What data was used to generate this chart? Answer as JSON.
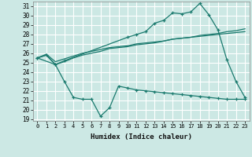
{
  "title": "",
  "xlabel": "Humidex (Indice chaleur)",
  "bg_color": "#cce8e4",
  "line_color": "#1a7a6e",
  "grid_color": "#ffffff",
  "xlim": [
    -0.5,
    23.5
  ],
  "ylim": [
    18.8,
    31.5
  ],
  "yticks": [
    19,
    20,
    21,
    22,
    23,
    24,
    25,
    26,
    27,
    28,
    29,
    30,
    31
  ],
  "xticks": [
    0,
    1,
    2,
    3,
    4,
    5,
    6,
    7,
    8,
    9,
    10,
    11,
    12,
    13,
    14,
    15,
    16,
    17,
    18,
    19,
    20,
    21,
    22,
    23
  ],
  "line1_x": [
    0,
    2,
    3,
    10,
    11,
    12,
    13,
    14,
    15,
    16,
    17,
    18,
    19,
    20,
    21,
    22,
    23
  ],
  "line1_y": [
    25.5,
    24.8,
    25.2,
    27.7,
    28.0,
    28.3,
    29.2,
    29.5,
    30.3,
    30.2,
    30.4,
    31.3,
    30.1,
    28.5,
    25.3,
    23.0,
    21.3
  ],
  "line2_x": [
    0,
    1,
    2,
    3,
    4,
    5,
    6,
    7,
    8,
    9,
    10,
    11,
    12,
    13,
    14,
    15,
    16,
    17,
    18,
    19,
    20,
    21,
    22,
    23
  ],
  "line2_y": [
    25.5,
    25.8,
    24.8,
    25.1,
    25.5,
    25.8,
    26.0,
    26.2,
    26.5,
    26.6,
    26.7,
    26.9,
    27.0,
    27.1,
    27.3,
    27.5,
    27.6,
    27.7,
    27.8,
    27.9,
    28.0,
    28.1,
    28.2,
    28.3
  ],
  "line3_x": [
    0,
    1,
    2,
    3,
    4,
    5,
    6,
    7,
    8,
    9,
    10,
    11,
    12,
    13,
    14,
    15,
    16,
    17,
    18,
    19,
    20,
    21,
    22,
    23
  ],
  "line3_y": [
    25.5,
    25.9,
    25.1,
    25.4,
    25.7,
    26.0,
    26.2,
    26.4,
    26.6,
    26.7,
    26.8,
    27.0,
    27.1,
    27.2,
    27.3,
    27.5,
    27.6,
    27.7,
    27.9,
    28.0,
    28.1,
    28.3,
    28.4,
    28.6
  ],
  "line4_x": [
    0,
    1,
    2,
    3,
    4,
    5,
    6,
    7,
    8,
    9,
    10,
    11,
    12,
    13,
    14,
    15,
    16,
    17,
    18,
    19,
    20,
    21,
    22,
    23
  ],
  "line4_y": [
    25.5,
    25.8,
    24.8,
    23.0,
    21.3,
    21.1,
    21.1,
    19.3,
    20.2,
    22.5,
    22.3,
    22.1,
    22.0,
    21.9,
    21.8,
    21.7,
    21.6,
    21.5,
    21.4,
    21.3,
    21.2,
    21.1,
    21.1,
    21.1
  ]
}
